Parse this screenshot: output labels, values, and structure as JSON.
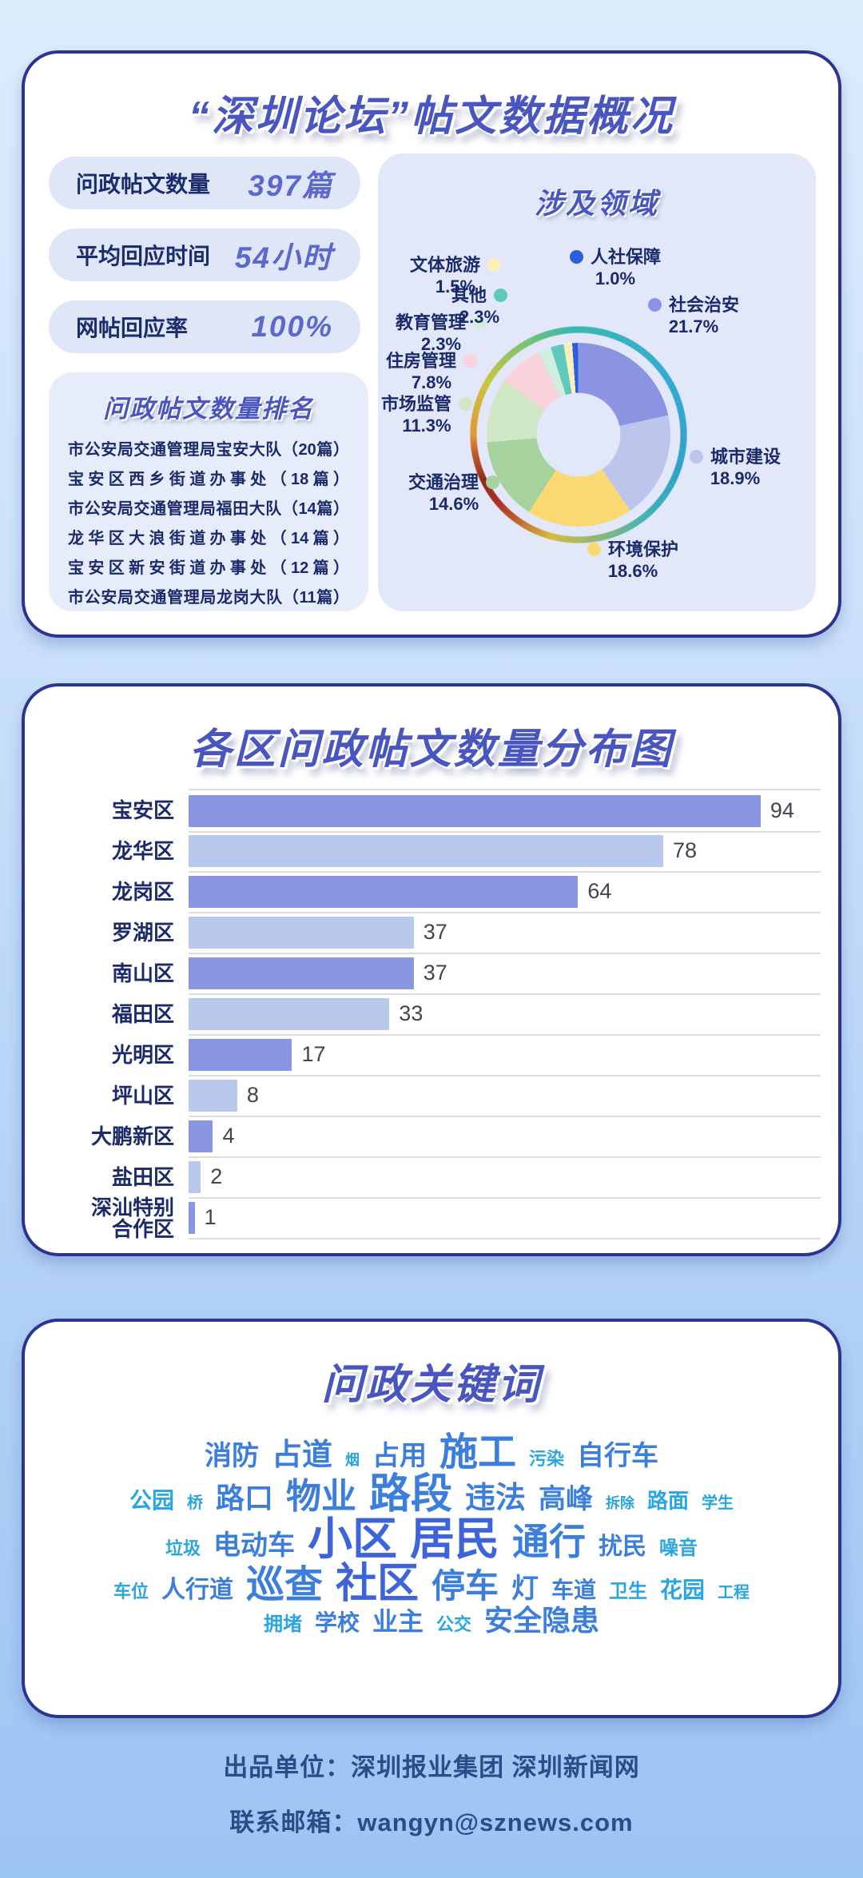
{
  "overview_card": {
    "title": "“深圳论坛”帖文数据概况",
    "stats": [
      {
        "label": "问政帖文数量",
        "value": "397篇"
      },
      {
        "label": "平均回应时间",
        "value": "54小时"
      },
      {
        "label": "网帖回应率",
        "value": "100%"
      }
    ],
    "ranking": {
      "title": "问政帖文数量排名",
      "items": [
        "市公安局交通管理局宝安大队（20篇）",
        "宝安区西乡街道办事处（18篇）",
        "市公安局交通管理局福田大队（14篇）",
        "龙华区大浪街道办事处（14篇）",
        "宝安区新安街道办事处（12篇）",
        "市公安局交通管理局龙岗大队（11篇）"
      ]
    }
  },
  "chart_data": [
    {
      "type": "pie",
      "title": "涉及领域",
      "donut": true,
      "unit": "%",
      "labels": [
        "人社保障",
        "社会治安",
        "城市建设",
        "环境保护",
        "交通治理",
        "市场监管",
        "住房管理",
        "教育管理",
        "其他",
        "文体旅游"
      ],
      "values": [
        1.0,
        21.7,
        18.9,
        18.6,
        14.6,
        11.3,
        7.8,
        2.3,
        2.3,
        1.5
      ],
      "colors": [
        "#2d5ede",
        "#8a94e2",
        "#bcc6ec",
        "#fad872",
        "#a6d29e",
        "#cfe7c5",
        "#f9d3db",
        "#cfeede",
        "#5ec9bc",
        "#fbf0bb"
      ],
      "dot_positions": [
        "left",
        "left",
        "left",
        "left",
        "right",
        "right",
        "right",
        "right",
        "right",
        "right"
      ],
      "legend_position": "around"
    },
    {
      "type": "bar",
      "title": "各区问政帖文数量分布图",
      "orientation": "horizontal",
      "categories": [
        "宝安区",
        "龙华区",
        "龙岗区",
        "罗湖区",
        "南山区",
        "福田区",
        "光明区",
        "坪山区",
        "大鹏新区",
        "盐田区",
        "深汕特别合作区"
      ],
      "values": [
        94,
        78,
        64,
        37,
        37,
        33,
        17,
        8,
        4,
        2,
        1
      ],
      "xlim": [
        0,
        94
      ],
      "bar_colors": [
        "#8a96e2",
        "#b9c9ee"
      ],
      "grid": "row-separators"
    }
  ],
  "keyword_card": {
    "title": "问政关键词",
    "rows": [
      [
        {
          "t": "消防",
          "s": 34,
          "c": "c1"
        },
        {
          "t": "占道",
          "s": 38,
          "c": "c1"
        },
        {
          "t": "烟",
          "s": 18,
          "c": "c2"
        },
        {
          "t": "占用",
          "s": 34,
          "c": "c1"
        },
        {
          "t": "施工",
          "s": 48,
          "c": "c1"
        },
        {
          "t": "污染",
          "s": 22,
          "c": "c2"
        },
        {
          "t": "自行车",
          "s": 34,
          "c": "c1"
        }
      ],
      [
        {
          "t": "公园",
          "s": 28,
          "c": "c2"
        },
        {
          "t": "桥",
          "s": 20,
          "c": "c2"
        },
        {
          "t": "路口",
          "s": 36,
          "c": "c1"
        },
        {
          "t": "物业",
          "s": 44,
          "c": "c1"
        },
        {
          "t": "路段",
          "s": 52,
          "c": "c1"
        },
        {
          "t": "违法",
          "s": 38,
          "c": "c1"
        },
        {
          "t": "高峰",
          "s": 34,
          "c": "c1"
        },
        {
          "t": "拆除",
          "s": 18,
          "c": "c2"
        },
        {
          "t": "路面",
          "s": 26,
          "c": "c2"
        },
        {
          "t": "学生",
          "s": 20,
          "c": "c2"
        }
      ],
      [
        {
          "t": "垃圾",
          "s": 22,
          "c": "c2"
        },
        {
          "t": "电动车",
          "s": 34,
          "c": "c1"
        },
        {
          "t": "小区",
          "s": 56,
          "c": "c3"
        },
        {
          "t": "居民",
          "s": 56,
          "c": "c3"
        },
        {
          "t": "通行",
          "s": 46,
          "c": "c1"
        },
        {
          "t": "扰民",
          "s": 30,
          "c": "c1"
        },
        {
          "t": "噪音",
          "s": 24,
          "c": "c2"
        }
      ],
      [
        {
          "t": "车位",
          "s": 22,
          "c": "c2"
        },
        {
          "t": "人行道",
          "s": 30,
          "c": "c1"
        },
        {
          "t": "巡查",
          "s": 48,
          "c": "c1"
        },
        {
          "t": "社区",
          "s": 52,
          "c": "c3"
        },
        {
          "t": "停车",
          "s": 42,
          "c": "c1"
        },
        {
          "t": "灯",
          "s": 34,
          "c": "c1"
        },
        {
          "t": "车道",
          "s": 28,
          "c": "c1"
        },
        {
          "t": "卫生",
          "s": 24,
          "c": "c2"
        },
        {
          "t": "花园",
          "s": 28,
          "c": "c2"
        },
        {
          "t": "工程",
          "s": 20,
          "c": "c2"
        }
      ],
      [
        {
          "t": "拥堵",
          "s": 24,
          "c": "c2"
        },
        {
          "t": "学校",
          "s": 28,
          "c": "c1"
        },
        {
          "t": "业主",
          "s": 32,
          "c": "c1"
        },
        {
          "t": "公交",
          "s": 22,
          "c": "c2"
        },
        {
          "t": "安全隐患",
          "s": 36,
          "c": "c1"
        }
      ]
    ]
  },
  "footer": {
    "line1": "出品单位：深圳报业集团 深圳新闻网",
    "line2": "联系邮箱：wangyn@sznews.com"
  }
}
